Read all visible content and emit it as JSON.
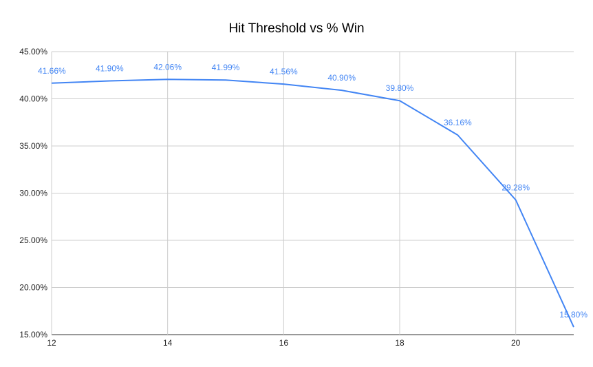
{
  "chart_data": {
    "type": "line",
    "title": "Hit Threshold vs % Win",
    "xlabel": "",
    "ylabel": "",
    "x": [
      12,
      13,
      14,
      15,
      16,
      17,
      18,
      19,
      20,
      21
    ],
    "series": [
      {
        "values": [
          41.66,
          41.9,
          42.06,
          41.99,
          41.56,
          40.9,
          39.8,
          36.16,
          29.28,
          15.8
        ],
        "labels": [
          "41.66%",
          "41.90%",
          "42.06%",
          "41.99%",
          "41.56%",
          "40.90%",
          "39.80%",
          "36.16%",
          "29.28%",
          "15.80%"
        ],
        "color": "#4285f4"
      }
    ],
    "xlim": [
      12,
      21
    ],
    "ylim": [
      15,
      45
    ],
    "x_ticks": [
      "12",
      "14",
      "16",
      "18",
      "20"
    ],
    "x_tick_values": [
      12,
      14,
      16,
      18,
      20
    ],
    "y_ticks": [
      "15.00%",
      "20.00%",
      "25.00%",
      "30.00%",
      "35.00%",
      "40.00%",
      "45.00%"
    ],
    "y_tick_values": [
      15,
      20,
      25,
      30,
      35,
      40,
      45
    ],
    "grid": true,
    "legend": "none"
  }
}
